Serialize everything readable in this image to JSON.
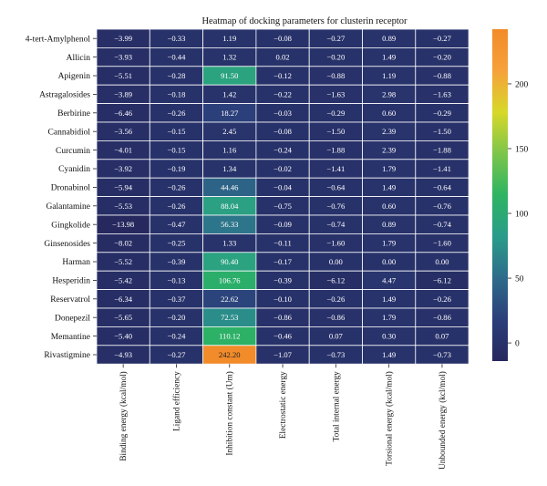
{
  "chart_data": {
    "type": "heatmap",
    "title": "Heatmap of docking parameters for clusterin receptor",
    "rows": [
      "4-tert-Amylphenol",
      "Allicin",
      "Apigenin",
      "Astragalosides",
      "Berbirine",
      "Cannabidiol",
      "Curcumin",
      "Cyanidin",
      "Dronabinol",
      "Galantamine",
      "Gingkolide",
      "Ginsenosides",
      "Harman",
      "Hesperidin",
      "Reservatrol",
      "Donepezil",
      "Memantine",
      "Rivastigmine"
    ],
    "columns": [
      "Binding energy (kcal/mol)",
      "Ligand efficiency",
      "Inhibition constant (Um)",
      "Electrostatic energy",
      "Total internal energy",
      "Torsional energy (kcal/mol)",
      "Unbounded energy (kcl/mol)"
    ],
    "values": [
      [
        -3.99,
        -0.33,
        1.19,
        -0.08,
        -0.27,
        0.89,
        -0.27
      ],
      [
        -3.93,
        -0.44,
        1.32,
        0.02,
        -0.2,
        1.49,
        -0.2
      ],
      [
        -5.51,
        -0.28,
        91.5,
        -0.12,
        -0.88,
        1.19,
        -0.88
      ],
      [
        -3.89,
        -0.18,
        1.42,
        -0.22,
        -1.63,
        2.98,
        -1.63
      ],
      [
        -6.46,
        -0.26,
        18.27,
        -0.03,
        -0.29,
        0.6,
        -0.29
      ],
      [
        -3.56,
        -0.15,
        2.45,
        -0.08,
        -1.5,
        2.39,
        -1.5
      ],
      [
        -4.01,
        -0.15,
        1.16,
        -0.24,
        -1.88,
        2.39,
        -1.88
      ],
      [
        -3.92,
        -0.19,
        1.34,
        -0.02,
        -1.41,
        1.79,
        -1.41
      ],
      [
        -5.94,
        -0.26,
        44.46,
        -0.04,
        -0.64,
        1.49,
        -0.64
      ],
      [
        -5.53,
        -0.26,
        88.04,
        -0.75,
        -0.76,
        0.6,
        -0.76
      ],
      [
        -13.98,
        -0.47,
        56.33,
        -0.09,
        -0.74,
        0.89,
        -0.74
      ],
      [
        -8.02,
        -0.25,
        1.33,
        -0.11,
        -1.6,
        1.79,
        -1.6
      ],
      [
        -5.52,
        -0.39,
        90.4,
        -0.17,
        0.0,
        0.0,
        0.0
      ],
      [
        -5.42,
        -0.13,
        106.76,
        -0.39,
        -6.12,
        4.47,
        -6.12
      ],
      [
        -6.34,
        -0.37,
        22.62,
        -0.1,
        -0.26,
        1.49,
        -0.26
      ],
      [
        -5.65,
        -0.2,
        72.53,
        -0.86,
        -0.86,
        1.79,
        -0.86
      ],
      [
        -5.4,
        -0.24,
        110.12,
        -0.46,
        0.07,
        0.3,
        0.07
      ],
      [
        -4.93,
        -0.27,
        242.2,
        -1.07,
        -0.73,
        1.49,
        -0.73
      ]
    ],
    "colorbar": {
      "min": -14,
      "max": 242.2,
      "ticks": [
        0,
        50,
        100,
        150,
        200
      ]
    },
    "colormap": [
      "#26285e",
      "#2b3f7a",
      "#2e6b8a",
      "#2a9c8a",
      "#2db462",
      "#7cc54b",
      "#d7d829",
      "#f6a13a",
      "#f28b2a"
    ]
  }
}
